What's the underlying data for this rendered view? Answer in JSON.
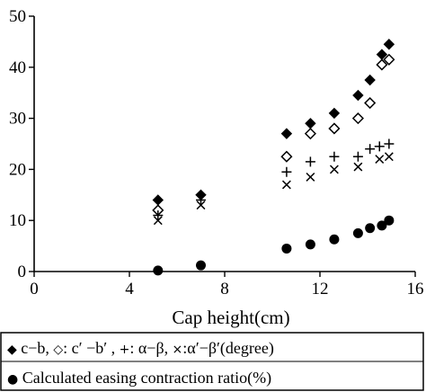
{
  "chart_data": {
    "type": "scatter",
    "title": "",
    "xlabel": "Cap height(cm)",
    "ylabel": "",
    "xlim": [
      0,
      16
    ],
    "ylim": [
      0,
      50
    ],
    "x_ticks": [
      0,
      4,
      8,
      12,
      16
    ],
    "y_ticks": [
      0,
      10,
      20,
      30,
      40,
      50
    ],
    "grid": false,
    "legend_position": "bottom",
    "legend": [
      {
        "line": 1,
        "items": [
          {
            "marker": "◆",
            "text": "c−b,"
          },
          {
            "marker": "◇",
            "text": ": c′ −b′ ,"
          },
          {
            "marker": "+",
            "text": ": α−β,"
          },
          {
            "marker": "×",
            "text": ":α′−β′(degree)"
          }
        ]
      },
      {
        "line": 2,
        "items": [
          {
            "marker": "●",
            "text": "Calculated easing contraction ratio(%)"
          }
        ]
      }
    ],
    "series": [
      {
        "marker": "diamond-filled",
        "x": [
          5.2,
          7.0,
          10.6,
          11.6,
          12.6,
          13.6,
          14.1,
          14.6,
          14.9
        ],
        "y": [
          14,
          15,
          27,
          29,
          31,
          34.5,
          37.5,
          42.5,
          44.5
        ]
      },
      {
        "marker": "diamond-open",
        "x": [
          5.2,
          10.6,
          11.6,
          12.6,
          13.6,
          14.1,
          14.6,
          14.9
        ],
        "y": [
          12,
          22.5,
          27,
          28,
          30,
          33,
          40.5,
          41.5
        ]
      },
      {
        "marker": "plus",
        "x": [
          5.2,
          7.0,
          10.6,
          11.6,
          12.6,
          13.6,
          14.1,
          14.5,
          14.9
        ],
        "y": [
          11,
          14,
          19.5,
          21.5,
          22.5,
          22.5,
          24,
          24.5,
          25
        ]
      },
      {
        "marker": "cross",
        "x": [
          5.2,
          7.0,
          10.6,
          11.6,
          12.6,
          13.6,
          14.5,
          14.9
        ],
        "y": [
          10,
          13,
          17,
          18.5,
          20,
          20.5,
          22,
          22.5
        ]
      },
      {
        "marker": "circle-filled",
        "x": [
          5.2,
          7.0,
          10.6,
          11.6,
          12.6,
          13.6,
          14.1,
          14.6,
          14.9
        ],
        "y": [
          0.2,
          1.2,
          4.5,
          5.3,
          6.3,
          7.5,
          8.5,
          9,
          10
        ]
      }
    ]
  }
}
